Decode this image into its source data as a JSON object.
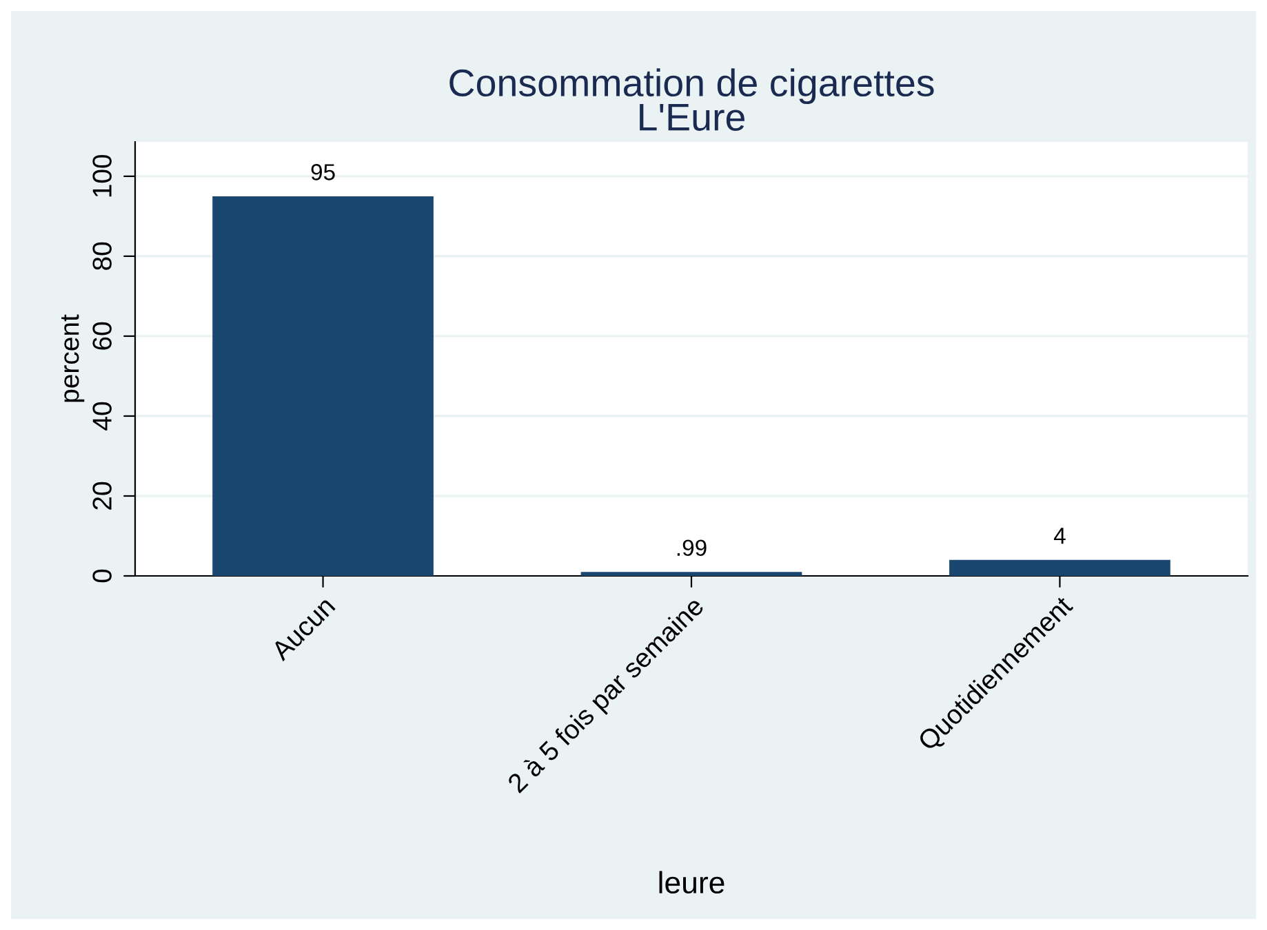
{
  "chart_data": {
    "type": "bar",
    "title": "Consommation de cigarettes\nL'Eure",
    "xlabel": "leure",
    "ylabel": "percent",
    "categories": [
      "Aucun",
      "2 à 5 fois par semaine",
      "Quotidiennement"
    ],
    "values": [
      95,
      0.99,
      4
    ],
    "value_labels": [
      "95",
      ".99",
      "4"
    ],
    "color": "#1a476f",
    "ylim": [
      0,
      108.6
    ],
    "yticks": [
      0,
      20,
      40,
      60,
      80,
      100
    ],
    "grid": "y"
  }
}
